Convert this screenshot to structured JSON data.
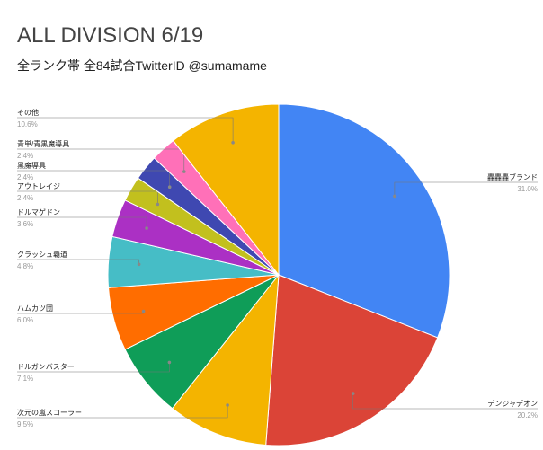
{
  "chart_data": {
    "type": "pie",
    "title": "ALL DIVISION 6/19",
    "subtitle": "全ランク帯 全84試合TwitterID @sumamame",
    "legend": "none",
    "slices": [
      {
        "label": "轟轟轟ブランド",
        "value": 31.0,
        "pct_text": "31.0%",
        "color": "#4285f4"
      },
      {
        "label": "デンジャデオン",
        "value": 20.2,
        "pct_text": "20.2%",
        "color": "#db4437"
      },
      {
        "label": "次元の嵐スコーラー",
        "value": 9.5,
        "pct_text": "9.5%",
        "color": "#f4b400"
      },
      {
        "label": "ドルガンバスター",
        "value": 7.1,
        "pct_text": "7.1%",
        "color": "#0f9d58"
      },
      {
        "label": "ハムカツ団",
        "value": 6.0,
        "pct_text": "6.0%",
        "color": "#ff6d00"
      },
      {
        "label": "クラッシュ覇道",
        "value": 4.8,
        "pct_text": "4.8%",
        "color": "#46bdc6"
      },
      {
        "label": "ドルマゲドン",
        "value": 3.6,
        "pct_text": "3.6%",
        "color": "#ab30c4"
      },
      {
        "label": "アウトレイジ",
        "value": 2.4,
        "pct_text": "2.4%",
        "color": "#c2c01e"
      },
      {
        "label": "黒魔導具",
        "value": 2.4,
        "pct_text": "2.4%",
        "color": "#3f48b1"
      },
      {
        "label": "青単/青黒魔導具",
        "value": 2.4,
        "pct_text": "2.4%",
        "color": "#ff70b8"
      },
      {
        "label": "その他",
        "value": 10.6,
        "pct_text": "10.6%",
        "color": "#f4b400"
      }
    ]
  }
}
